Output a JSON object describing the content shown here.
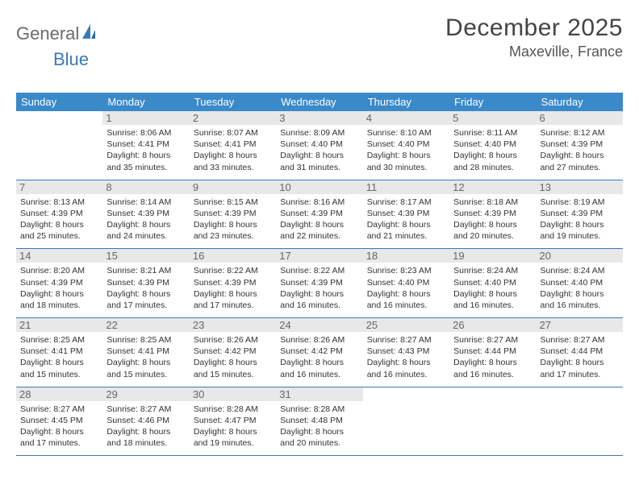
{
  "logo": {
    "part1": "General",
    "part2": "Blue"
  },
  "title": "December 2025",
  "subtitle": "Maxeville, France",
  "colors": {
    "header_bg": "#3a89c9",
    "header_fg": "#ffffff",
    "accent": "#3a7ab8",
    "daynum_bg": "#e8e8e8",
    "daynum_fg": "#666666",
    "text": "#333333",
    "title_fg": "#444444",
    "logo_gray": "#6b6b6b"
  },
  "columns": [
    "Sunday",
    "Monday",
    "Tuesday",
    "Wednesday",
    "Thursday",
    "Friday",
    "Saturday"
  ],
  "weeks": [
    [
      {
        "day": "",
        "lines": [
          "",
          "",
          "",
          ""
        ]
      },
      {
        "day": "1",
        "lines": [
          "Sunrise: 8:06 AM",
          "Sunset: 4:41 PM",
          "Daylight: 8 hours",
          "and 35 minutes."
        ]
      },
      {
        "day": "2",
        "lines": [
          "Sunrise: 8:07 AM",
          "Sunset: 4:41 PM",
          "Daylight: 8 hours",
          "and 33 minutes."
        ]
      },
      {
        "day": "3",
        "lines": [
          "Sunrise: 8:09 AM",
          "Sunset: 4:40 PM",
          "Daylight: 8 hours",
          "and 31 minutes."
        ]
      },
      {
        "day": "4",
        "lines": [
          "Sunrise: 8:10 AM",
          "Sunset: 4:40 PM",
          "Daylight: 8 hours",
          "and 30 minutes."
        ]
      },
      {
        "day": "5",
        "lines": [
          "Sunrise: 8:11 AM",
          "Sunset: 4:40 PM",
          "Daylight: 8 hours",
          "and 28 minutes."
        ]
      },
      {
        "day": "6",
        "lines": [
          "Sunrise: 8:12 AM",
          "Sunset: 4:39 PM",
          "Daylight: 8 hours",
          "and 27 minutes."
        ]
      }
    ],
    [
      {
        "day": "7",
        "lines": [
          "Sunrise: 8:13 AM",
          "Sunset: 4:39 PM",
          "Daylight: 8 hours",
          "and 25 minutes."
        ]
      },
      {
        "day": "8",
        "lines": [
          "Sunrise: 8:14 AM",
          "Sunset: 4:39 PM",
          "Daylight: 8 hours",
          "and 24 minutes."
        ]
      },
      {
        "day": "9",
        "lines": [
          "Sunrise: 8:15 AM",
          "Sunset: 4:39 PM",
          "Daylight: 8 hours",
          "and 23 minutes."
        ]
      },
      {
        "day": "10",
        "lines": [
          "Sunrise: 8:16 AM",
          "Sunset: 4:39 PM",
          "Daylight: 8 hours",
          "and 22 minutes."
        ]
      },
      {
        "day": "11",
        "lines": [
          "Sunrise: 8:17 AM",
          "Sunset: 4:39 PM",
          "Daylight: 8 hours",
          "and 21 minutes."
        ]
      },
      {
        "day": "12",
        "lines": [
          "Sunrise: 8:18 AM",
          "Sunset: 4:39 PM",
          "Daylight: 8 hours",
          "and 20 minutes."
        ]
      },
      {
        "day": "13",
        "lines": [
          "Sunrise: 8:19 AM",
          "Sunset: 4:39 PM",
          "Daylight: 8 hours",
          "and 19 minutes."
        ]
      }
    ],
    [
      {
        "day": "14",
        "lines": [
          "Sunrise: 8:20 AM",
          "Sunset: 4:39 PM",
          "Daylight: 8 hours",
          "and 18 minutes."
        ]
      },
      {
        "day": "15",
        "lines": [
          "Sunrise: 8:21 AM",
          "Sunset: 4:39 PM",
          "Daylight: 8 hours",
          "and 17 minutes."
        ]
      },
      {
        "day": "16",
        "lines": [
          "Sunrise: 8:22 AM",
          "Sunset: 4:39 PM",
          "Daylight: 8 hours",
          "and 17 minutes."
        ]
      },
      {
        "day": "17",
        "lines": [
          "Sunrise: 8:22 AM",
          "Sunset: 4:39 PM",
          "Daylight: 8 hours",
          "and 16 minutes."
        ]
      },
      {
        "day": "18",
        "lines": [
          "Sunrise: 8:23 AM",
          "Sunset: 4:40 PM",
          "Daylight: 8 hours",
          "and 16 minutes."
        ]
      },
      {
        "day": "19",
        "lines": [
          "Sunrise: 8:24 AM",
          "Sunset: 4:40 PM",
          "Daylight: 8 hours",
          "and 16 minutes."
        ]
      },
      {
        "day": "20",
        "lines": [
          "Sunrise: 8:24 AM",
          "Sunset: 4:40 PM",
          "Daylight: 8 hours",
          "and 16 minutes."
        ]
      }
    ],
    [
      {
        "day": "21",
        "lines": [
          "Sunrise: 8:25 AM",
          "Sunset: 4:41 PM",
          "Daylight: 8 hours",
          "and 15 minutes."
        ]
      },
      {
        "day": "22",
        "lines": [
          "Sunrise: 8:25 AM",
          "Sunset: 4:41 PM",
          "Daylight: 8 hours",
          "and 15 minutes."
        ]
      },
      {
        "day": "23",
        "lines": [
          "Sunrise: 8:26 AM",
          "Sunset: 4:42 PM",
          "Daylight: 8 hours",
          "and 15 minutes."
        ]
      },
      {
        "day": "24",
        "lines": [
          "Sunrise: 8:26 AM",
          "Sunset: 4:42 PM",
          "Daylight: 8 hours",
          "and 16 minutes."
        ]
      },
      {
        "day": "25",
        "lines": [
          "Sunrise: 8:27 AM",
          "Sunset: 4:43 PM",
          "Daylight: 8 hours",
          "and 16 minutes."
        ]
      },
      {
        "day": "26",
        "lines": [
          "Sunrise: 8:27 AM",
          "Sunset: 4:44 PM",
          "Daylight: 8 hours",
          "and 16 minutes."
        ]
      },
      {
        "day": "27",
        "lines": [
          "Sunrise: 8:27 AM",
          "Sunset: 4:44 PM",
          "Daylight: 8 hours",
          "and 17 minutes."
        ]
      }
    ],
    [
      {
        "day": "28",
        "lines": [
          "Sunrise: 8:27 AM",
          "Sunset: 4:45 PM",
          "Daylight: 8 hours",
          "and 17 minutes."
        ]
      },
      {
        "day": "29",
        "lines": [
          "Sunrise: 8:27 AM",
          "Sunset: 4:46 PM",
          "Daylight: 8 hours",
          "and 18 minutes."
        ]
      },
      {
        "day": "30",
        "lines": [
          "Sunrise: 8:28 AM",
          "Sunset: 4:47 PM",
          "Daylight: 8 hours",
          "and 19 minutes."
        ]
      },
      {
        "day": "31",
        "lines": [
          "Sunrise: 8:28 AM",
          "Sunset: 4:48 PM",
          "Daylight: 8 hours",
          "and 20 minutes."
        ]
      },
      {
        "day": "",
        "lines": [
          "",
          "",
          "",
          ""
        ]
      },
      {
        "day": "",
        "lines": [
          "",
          "",
          "",
          ""
        ]
      },
      {
        "day": "",
        "lines": [
          "",
          "",
          "",
          ""
        ]
      }
    ]
  ]
}
